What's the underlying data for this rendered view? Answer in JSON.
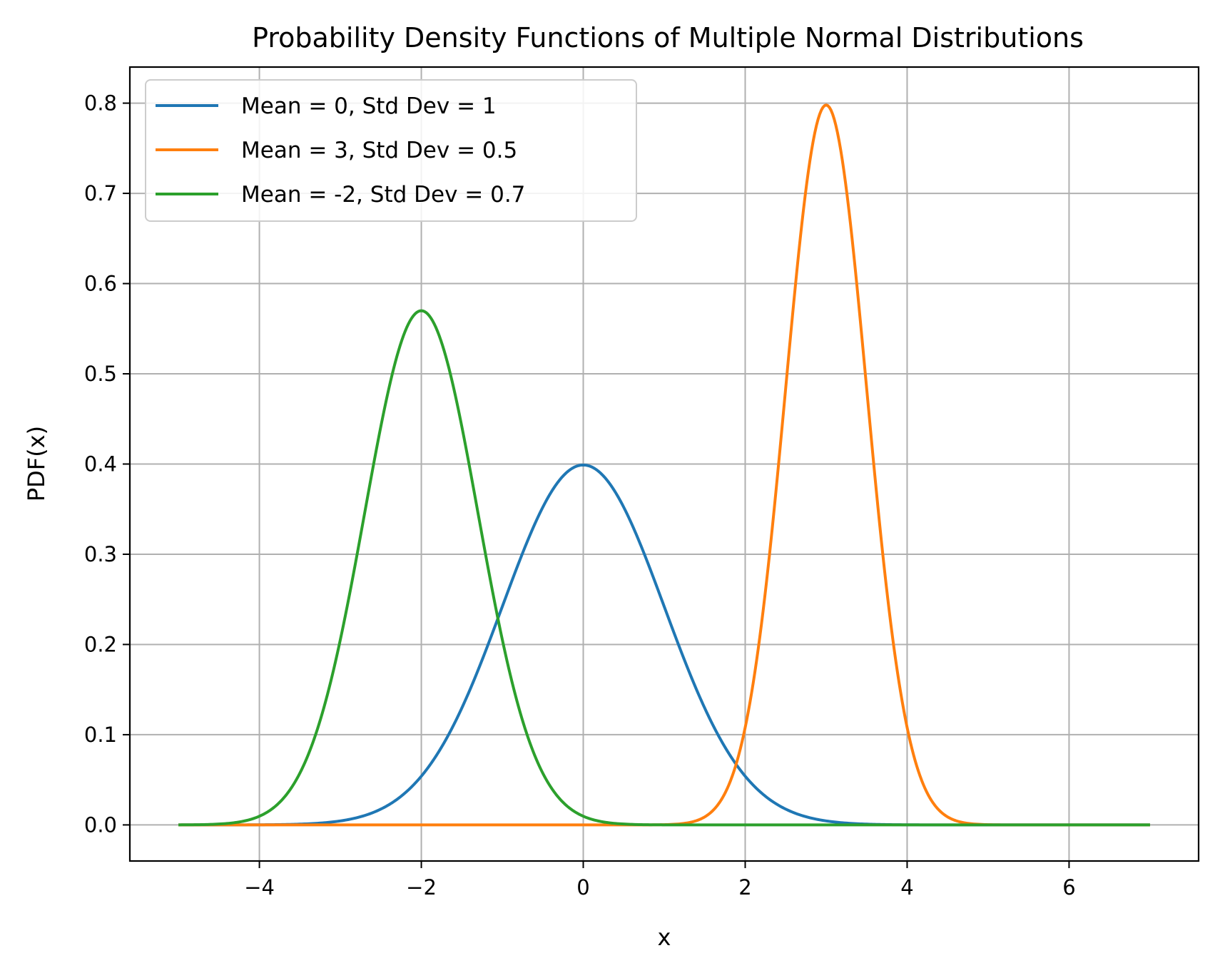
{
  "chart_data": {
    "type": "line",
    "title": "Probability Density Functions of Multiple Normal Distributions",
    "xlabel": "x",
    "ylabel": "PDF(x)",
    "xlim": [
      -5.6,
      7.6
    ],
    "ylim": [
      -0.04,
      0.84
    ],
    "x_range": [
      -5,
      7
    ],
    "grid": true,
    "legend_position": "top-left",
    "xticks": [
      -4,
      -2,
      0,
      2,
      4,
      6
    ],
    "xtick_labels": [
      "−4",
      "−2",
      "0",
      "2",
      "4",
      "6"
    ],
    "yticks": [
      0.0,
      0.1,
      0.2,
      0.3,
      0.4,
      0.5,
      0.6,
      0.7,
      0.8
    ],
    "ytick_labels": [
      "0.0",
      "0.1",
      "0.2",
      "0.3",
      "0.4",
      "0.5",
      "0.6",
      "0.7",
      "0.8"
    ],
    "series": [
      {
        "name": "Mean = 0, Std Dev = 1",
        "mean": 0,
        "std": 1,
        "color": "#1f77b4",
        "peak": 0.399
      },
      {
        "name": "Mean = 3, Std Dev = 0.5",
        "mean": 3,
        "std": 0.5,
        "color": "#ff7f0e",
        "peak": 0.798
      },
      {
        "name": "Mean = -2, Std Dev = 0.7",
        "mean": -2,
        "std": 0.7,
        "color": "#2ca02c",
        "peak": 0.57
      }
    ]
  }
}
